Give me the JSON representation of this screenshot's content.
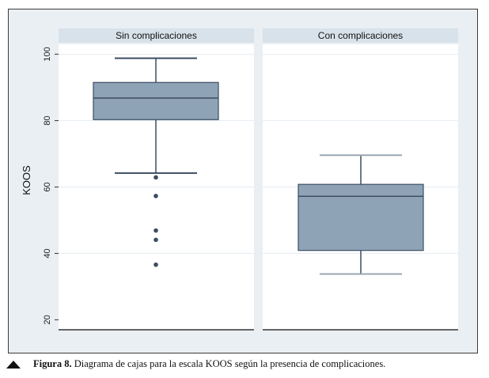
{
  "chart_data": {
    "type": "box",
    "ylabel": "KOOS",
    "ylim": [
      17,
      103
    ],
    "yticks": [
      20,
      40,
      60,
      80,
      100
    ],
    "grid": true,
    "panels": [
      {
        "title": "Sin complicaciones",
        "box": {
          "whisker_low": 64.2,
          "q1": 80.3,
          "median": 86.8,
          "q3": 91.5,
          "whisker_high": 98.8
        },
        "outliers": [
          62.9,
          57.3,
          46.9,
          44.1,
          36.6
        ]
      },
      {
        "title": "Con complicaciones",
        "box": {
          "whisker_low": 33.8,
          "q1": 40.9,
          "median": 57.2,
          "q3": 60.8,
          "whisker_high": 69.6
        },
        "outliers": []
      }
    ],
    "colors": {
      "box_fill": "#8fa3b7",
      "box_stroke": "#3b4d63",
      "outlier": "#3b4d63",
      "panel_title_bg": "#d8e2ea",
      "plot_bg": "#ffffff",
      "outer_bg": "#e9eff3",
      "grid": "#e9eff3"
    }
  },
  "caption": {
    "label": "Figura 8.",
    "text": " Diagrama de cajas para la escala KOOS según la presencia de complicaciones."
  }
}
